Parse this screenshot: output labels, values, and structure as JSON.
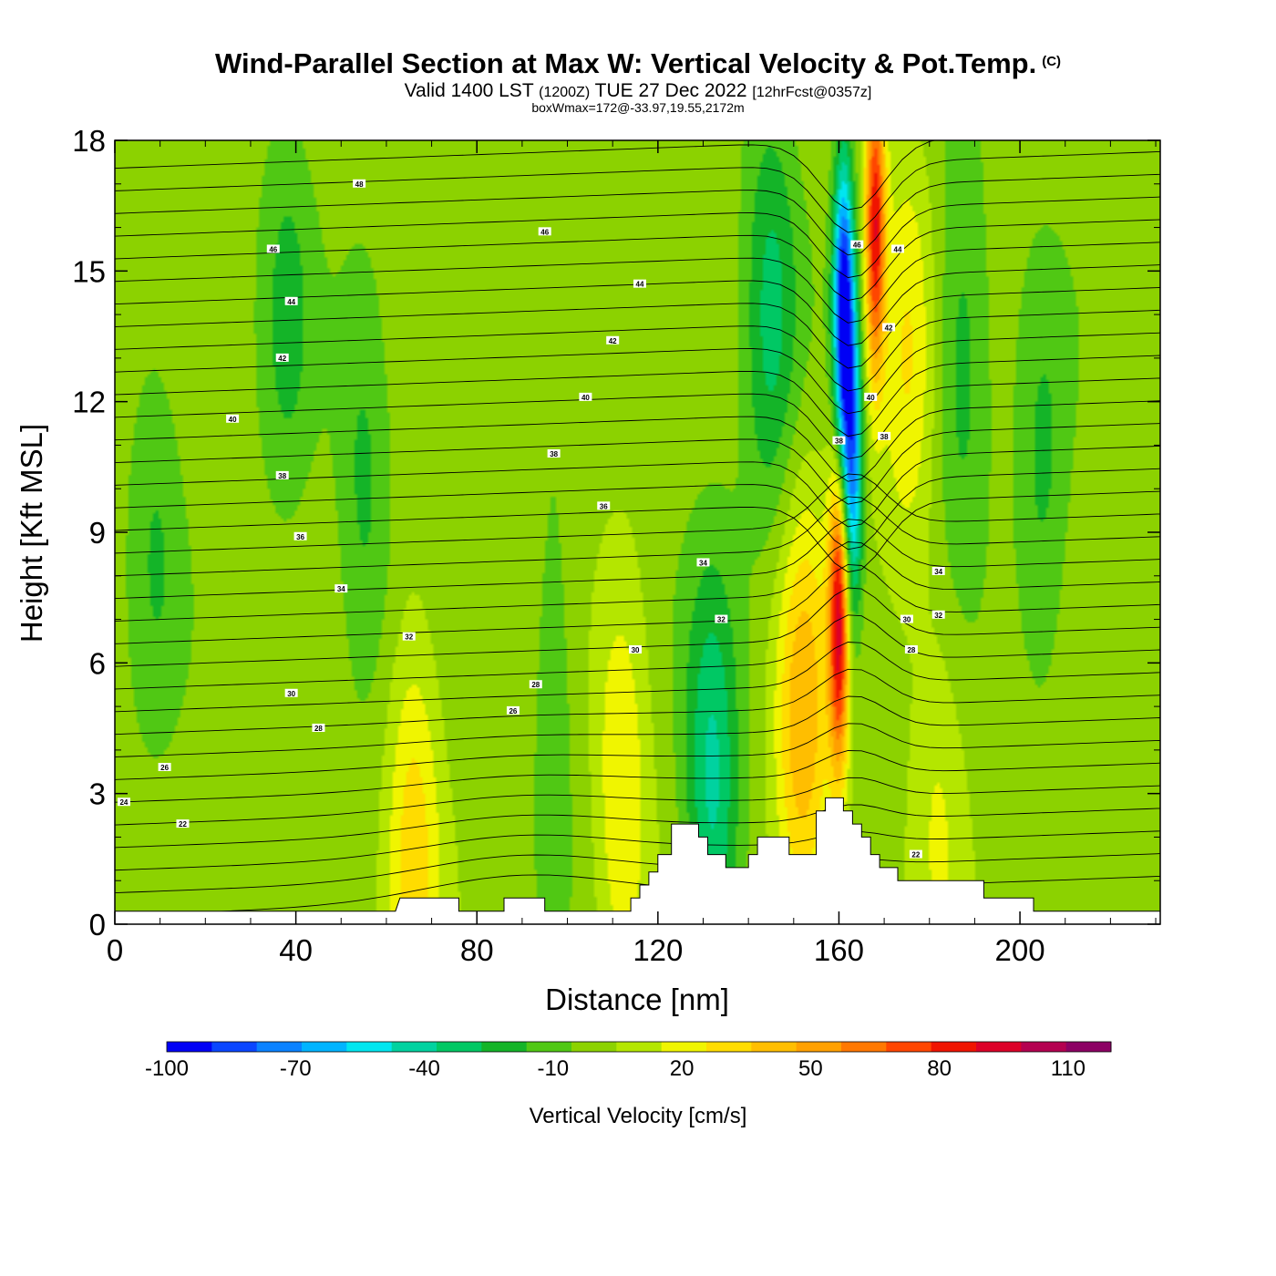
{
  "chart_data": {
    "type": "heatmap",
    "title": "Wind-Parallel Section at Max W: Vertical Velocity & Pot.Temp.",
    "copyright_mark": "(C)",
    "subtitle_main": "Valid 1400 LST",
    "subtitle_utc": "(1200Z)",
    "subtitle_date": "TUE 27 Dec 2022",
    "subtitle_fcst": "[12hrFcst@0357z]",
    "box_info": "boxWmax=172@-33.97,19.55,2172m",
    "xlabel": "Distance [nm]",
    "ylabel": "Height [Kft MSL]",
    "xlim": [
      0,
      231
    ],
    "ylim": [
      0,
      18
    ],
    "x_ticks": [
      0,
      40,
      80,
      120,
      160,
      200
    ],
    "y_ticks": [
      0,
      3,
      6,
      9,
      12,
      15,
      18
    ],
    "colorbar": {
      "label": "Vertical Velocity [cm/s]",
      "tick_values": [
        -100,
        -70,
        -40,
        -10,
        20,
        50,
        80,
        110
      ],
      "colors": [
        "#0000f5",
        "#0a46ff",
        "#0a82ff",
        "#00b4ff",
        "#00e6f0",
        "#00d2a0",
        "#00c864",
        "#14b428",
        "#50c814",
        "#8cd200",
        "#b4e600",
        "#f0f500",
        "#ffdc00",
        "#ffbe00",
        "#ffa000",
        "#ff7800",
        "#ff4600",
        "#f01400",
        "#dc0028",
        "#b40050",
        "#8c0064"
      ],
      "min": -100,
      "max": 120
    },
    "background_w": 0,
    "w_features": [
      {
        "x": 161,
        "z": 14.0,
        "w": -100
      },
      {
        "x": 163,
        "z": 10.5,
        "w": -70
      },
      {
        "x": 168,
        "z": 16.0,
        "w": 85
      },
      {
        "x": 160,
        "z": 7.0,
        "w": 90
      },
      {
        "x": 152,
        "z": 4.5,
        "w": 45
      },
      {
        "x": 145,
        "z": 14.0,
        "w": -30
      },
      {
        "x": 175,
        "z": 13.0,
        "w": 25
      },
      {
        "x": 132,
        "z": 3.0,
        "w": -40
      },
      {
        "x": 112,
        "z": 3.0,
        "w": 25
      },
      {
        "x": 66,
        "z": 2.0,
        "w": 30
      },
      {
        "x": 55,
        "z": 10.0,
        "w": -18
      },
      {
        "x": 38,
        "z": 14.0,
        "w": -18
      },
      {
        "x": 9,
        "z": 9.0,
        "w": -15
      },
      {
        "x": 97,
        "z": 6.0,
        "w": -12
      },
      {
        "x": 187,
        "z": 13.0,
        "w": -22
      },
      {
        "x": 205,
        "z": 10.0,
        "w": -18
      },
      {
        "x": 182,
        "z": 3.0,
        "w": 15
      }
    ],
    "theta_labels": [
      {
        "x": 54,
        "z": 17.0,
        "t": "48"
      },
      {
        "x": 95,
        "z": 15.9,
        "t": "46"
      },
      {
        "x": 35,
        "z": 15.5,
        "t": "46"
      },
      {
        "x": 39,
        "z": 14.3,
        "t": "44"
      },
      {
        "x": 116,
        "z": 14.7,
        "t": "44"
      },
      {
        "x": 37,
        "z": 13.0,
        "t": "42"
      },
      {
        "x": 110,
        "z": 13.4,
        "t": "42"
      },
      {
        "x": 26,
        "z": 11.6,
        "t": "40"
      },
      {
        "x": 104,
        "z": 12.1,
        "t": "40"
      },
      {
        "x": 37,
        "z": 10.3,
        "t": "38"
      },
      {
        "x": 97,
        "z": 10.8,
        "t": "38"
      },
      {
        "x": 41,
        "z": 8.9,
        "t": "36"
      },
      {
        "x": 108,
        "z": 9.6,
        "t": "36"
      },
      {
        "x": 50,
        "z": 7.7,
        "t": "34"
      },
      {
        "x": 130,
        "z": 8.3,
        "t": "34"
      },
      {
        "x": 65,
        "z": 6.6,
        "t": "32"
      },
      {
        "x": 134,
        "z": 7.0,
        "t": "32"
      },
      {
        "x": 115,
        "z": 6.3,
        "t": "30"
      },
      {
        "x": 39,
        "z": 5.3,
        "t": "30"
      },
      {
        "x": 93,
        "z": 5.5,
        "t": "28"
      },
      {
        "x": 45,
        "z": 4.5,
        "t": "28"
      },
      {
        "x": 88,
        "z": 4.9,
        "t": "26"
      },
      {
        "x": 11,
        "z": 3.6,
        "t": "26"
      },
      {
        "x": 2,
        "z": 2.8,
        "t": "24"
      },
      {
        "x": 15,
        "z": 2.3,
        "t": "22"
      },
      {
        "x": 164,
        "z": 15.6,
        "t": "46"
      },
      {
        "x": 173,
        "z": 15.5,
        "t": "44"
      },
      {
        "x": 171,
        "z": 13.7,
        "t": "42"
      },
      {
        "x": 167,
        "z": 12.1,
        "t": "40"
      },
      {
        "x": 160,
        "z": 11.1,
        "t": "38"
      },
      {
        "x": 170,
        "z": 11.2,
        "t": "38"
      },
      {
        "x": 182,
        "z": 8.1,
        "t": "34"
      },
      {
        "x": 182,
        "z": 7.1,
        "t": "32"
      },
      {
        "x": 175,
        "z": 7.0,
        "t": "30"
      },
      {
        "x": 176,
        "z": 6.3,
        "t": "28"
      },
      {
        "x": 177,
        "z": 1.6,
        "t": "22"
      }
    ],
    "terrain_kft": [
      [
        0,
        0.3
      ],
      [
        62,
        0.3
      ],
      [
        63,
        0.6
      ],
      [
        76,
        0.6
      ],
      [
        76,
        0.3
      ],
      [
        86,
        0.3
      ],
      [
        86,
        0.6
      ],
      [
        95,
        0.6
      ],
      [
        95,
        0.3
      ],
      [
        114,
        0.3
      ],
      [
        114,
        0.6
      ],
      [
        116,
        0.6
      ],
      [
        116,
        0.9
      ],
      [
        118,
        0.9
      ],
      [
        118,
        1.2
      ],
      [
        120,
        1.2
      ],
      [
        120,
        1.6
      ],
      [
        123,
        1.6
      ],
      [
        123,
        2.3
      ],
      [
        129,
        2.3
      ],
      [
        129,
        2.0
      ],
      [
        131,
        2.0
      ],
      [
        131,
        1.6
      ],
      [
        135,
        1.6
      ],
      [
        135,
        1.3
      ],
      [
        140,
        1.3
      ],
      [
        140,
        1.6
      ],
      [
        142,
        1.6
      ],
      [
        142,
        2.0
      ],
      [
        149,
        2.0
      ],
      [
        149,
        1.6
      ],
      [
        155,
        1.6
      ],
      [
        155,
        2.6
      ],
      [
        157,
        2.6
      ],
      [
        157,
        2.9
      ],
      [
        161,
        2.9
      ],
      [
        161,
        2.6
      ],
      [
        163,
        2.6
      ],
      [
        163,
        2.3
      ],
      [
        165,
        2.3
      ],
      [
        165,
        2.0
      ],
      [
        167,
        2.0
      ],
      [
        167,
        1.6
      ],
      [
        169,
        1.6
      ],
      [
        169,
        1.3
      ],
      [
        173,
        1.3
      ],
      [
        173,
        1.0
      ],
      [
        184,
        1.0
      ],
      [
        184,
        1.0
      ],
      [
        192,
        1.0
      ],
      [
        192,
        0.6
      ],
      [
        203,
        0.6
      ],
      [
        203,
        0.3
      ],
      [
        231,
        0.3
      ]
    ]
  }
}
